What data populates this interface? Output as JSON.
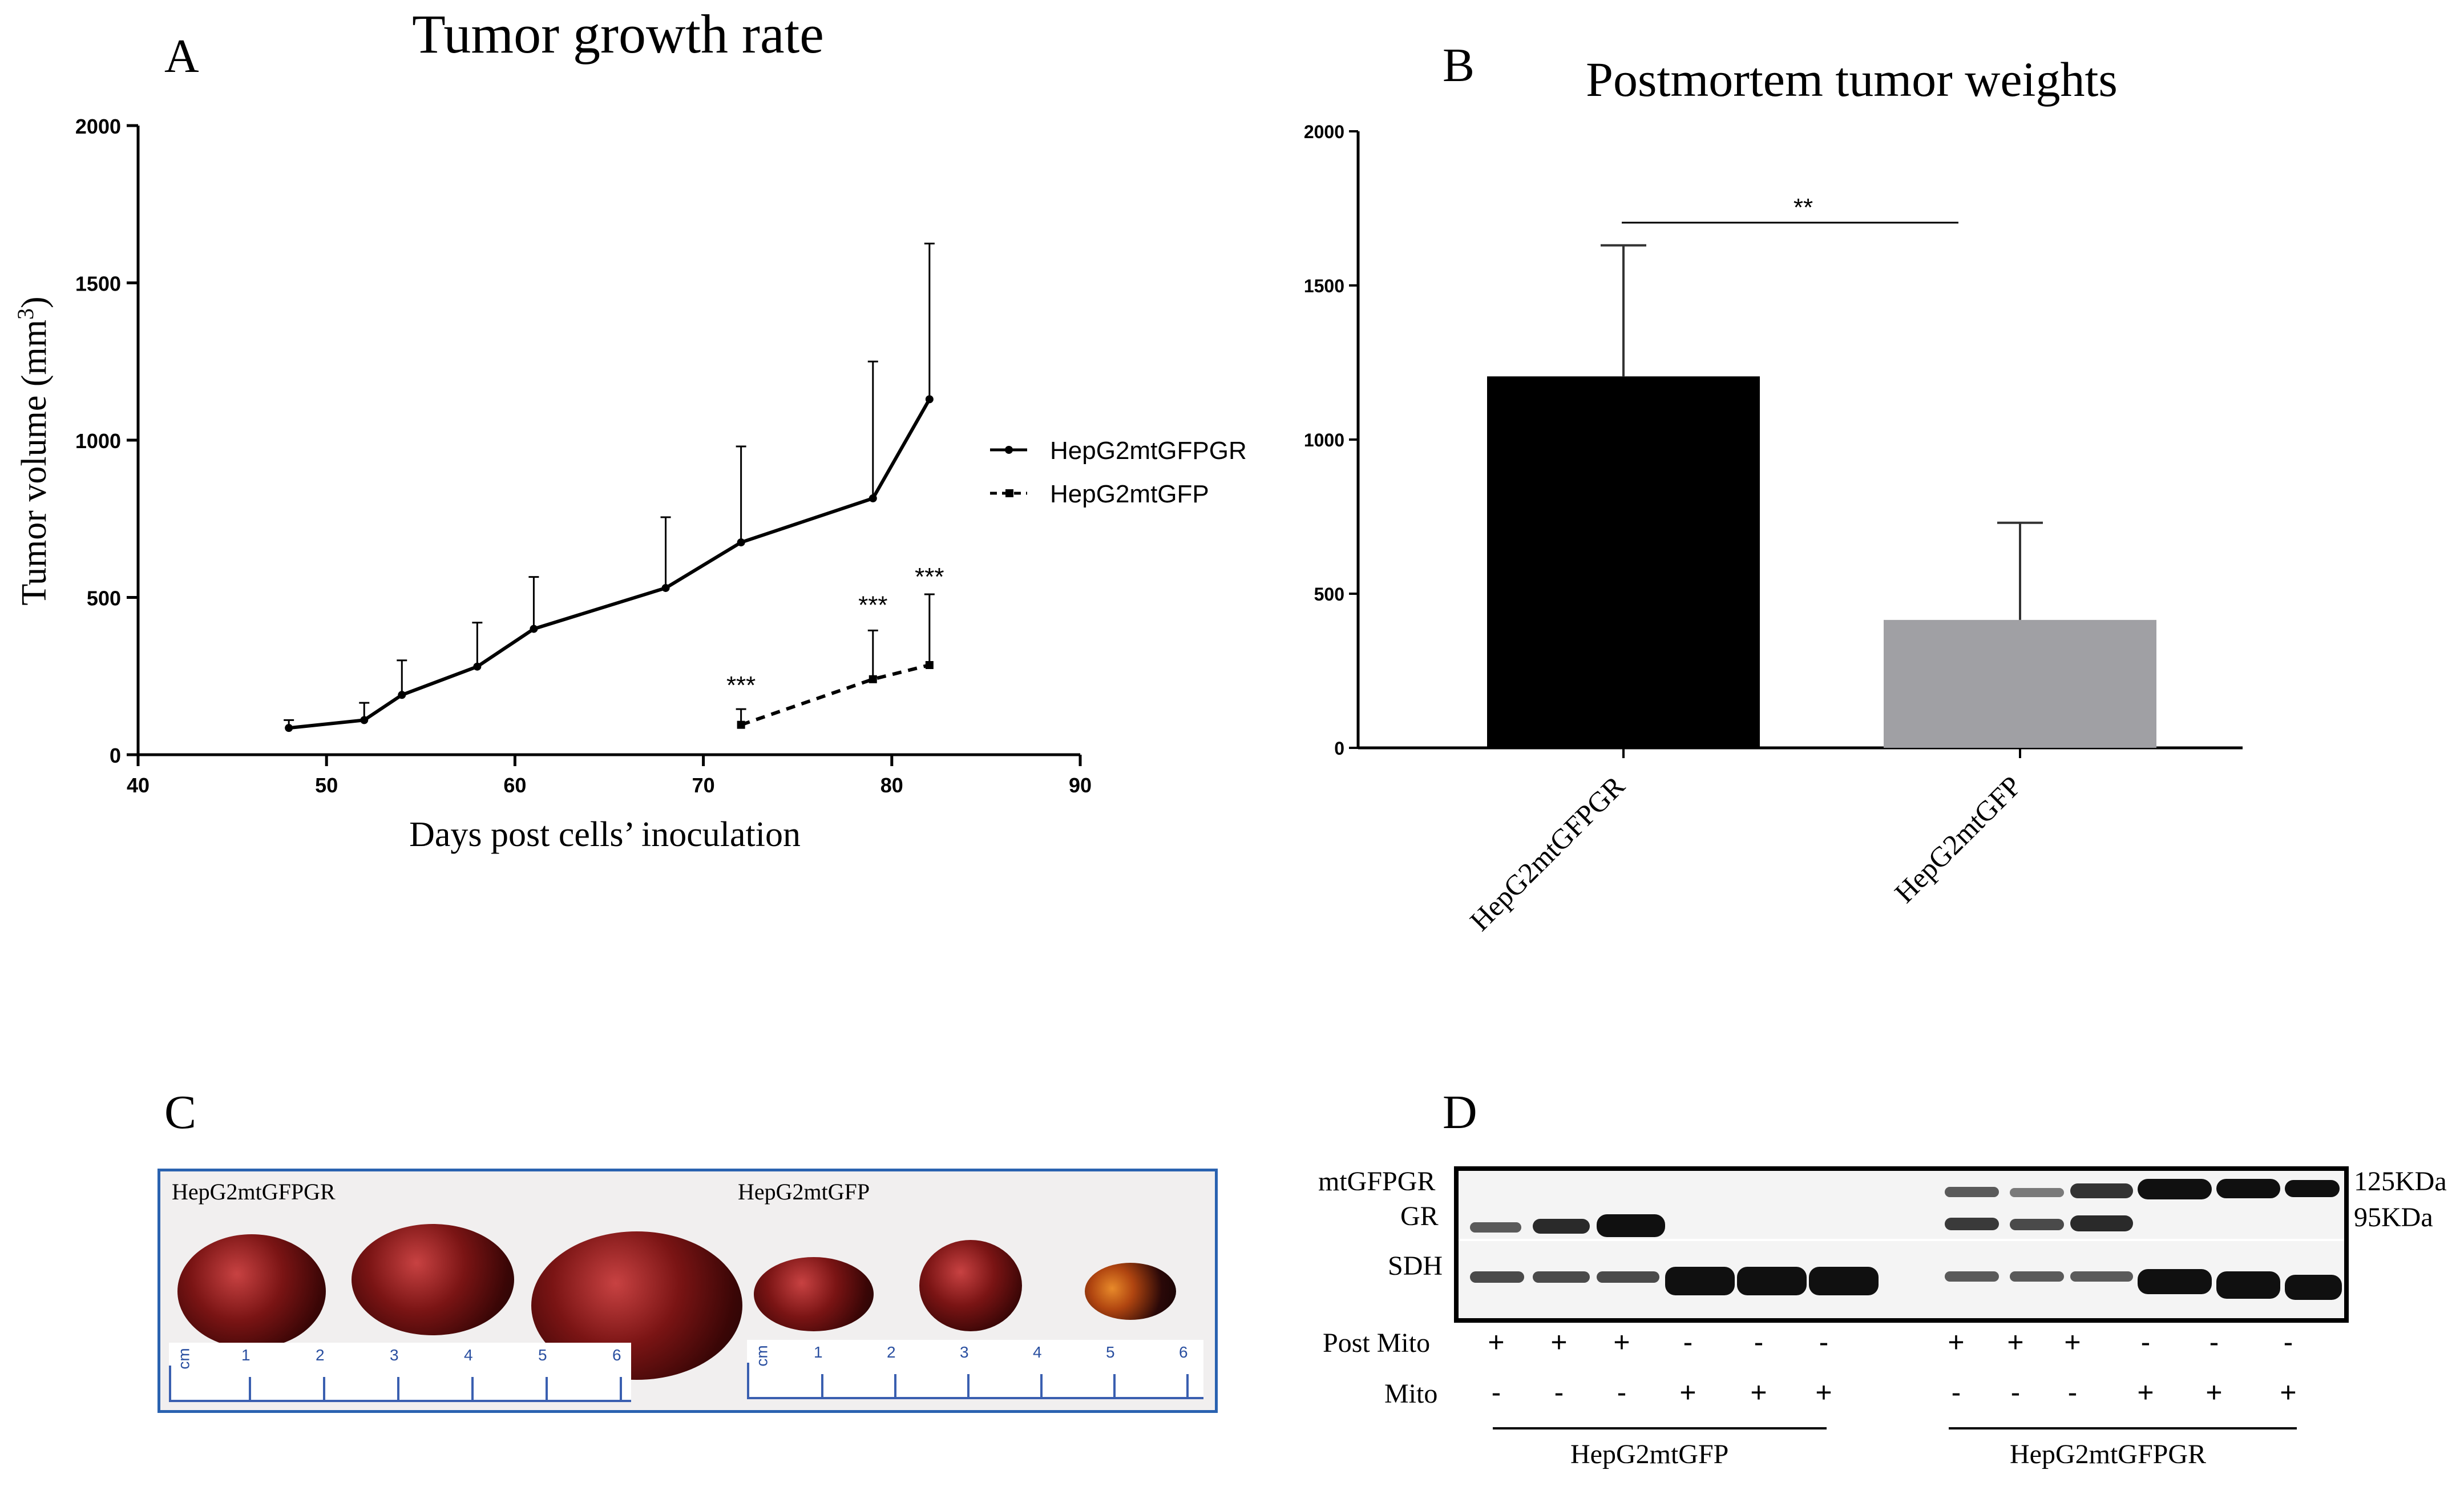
{
  "panels": {
    "a": "A",
    "b": "B",
    "c": "C",
    "d": "D"
  },
  "chart_data": [
    {
      "type": "line",
      "title": "Tumor growth rate",
      "xlabel": "Days post cells’ inoculation",
      "ylabel": "Tumor volume (mm",
      "ylabel_sup": "3",
      "ylabel_end": ")",
      "xlim": [
        40,
        90
      ],
      "ylim": [
        0,
        2000
      ],
      "xticks": [
        40,
        50,
        60,
        70,
        80,
        90
      ],
      "yticks": [
        0,
        500,
        1000,
        1500,
        2000
      ],
      "legend_position": "right",
      "series": [
        {
          "name": "HepG2mtGFPGR",
          "style": "solid",
          "x": [
            48,
            52,
            54,
            58,
            61,
            68,
            72,
            79,
            82
          ],
          "y": [
            85,
            110,
            190,
            280,
            400,
            530,
            675,
            815,
            1130
          ],
          "err": [
            25,
            55,
            110,
            140,
            165,
            225,
            305,
            435,
            495
          ]
        },
        {
          "name": "HepG2mtGFP",
          "style": "dashed",
          "x": [
            72,
            79,
            82
          ],
          "y": [
            95,
            240,
            285
          ],
          "err": [
            50,
            155,
            225
          ]
        }
      ],
      "annotations": [
        {
          "x": 72,
          "y": 245,
          "text": "***"
        },
        {
          "x": 79,
          "y": 500,
          "text": "***"
        },
        {
          "x": 82,
          "y": 590,
          "text": "***"
        }
      ]
    },
    {
      "type": "bar",
      "title": "Postmortem tumor weights",
      "categories": [
        "HepG2mtGFPGR",
        "HepG2mtGFP"
      ],
      "values": [
        1205,
        415
      ],
      "err": [
        425,
        315
      ],
      "colors": [
        "#000000",
        "#a0a0a4"
      ],
      "ylim": [
        0,
        2000
      ],
      "yticks": [
        0,
        500,
        1000,
        1500,
        2000
      ],
      "significance": "**"
    }
  ],
  "photo": {
    "label_left": "HepG2mtGFPGR",
    "label_right": "HepG2mtGFP",
    "ruler_unit": "cm",
    "ruler_marks": [
      "1",
      "2",
      "3",
      "4",
      "5",
      "6"
    ]
  },
  "blot": {
    "rows": [
      "mtGFPGR",
      "GR",
      "SDH"
    ],
    "sizes": [
      "125KDa",
      "95KDa"
    ],
    "post_mito_label": "Post Mito",
    "mito_label": "Mito",
    "post_mito": [
      "+",
      "+",
      "+",
      "-",
      "-",
      "-",
      "+",
      "+",
      "+",
      "-",
      "-",
      "-"
    ],
    "mito": [
      "-",
      "-",
      "-",
      "+",
      "+",
      "+",
      "-",
      "-",
      "-",
      "+",
      "+",
      "+"
    ],
    "group_left": "HepG2mtGFP",
    "group_right": "HepG2mtGFPGR"
  }
}
